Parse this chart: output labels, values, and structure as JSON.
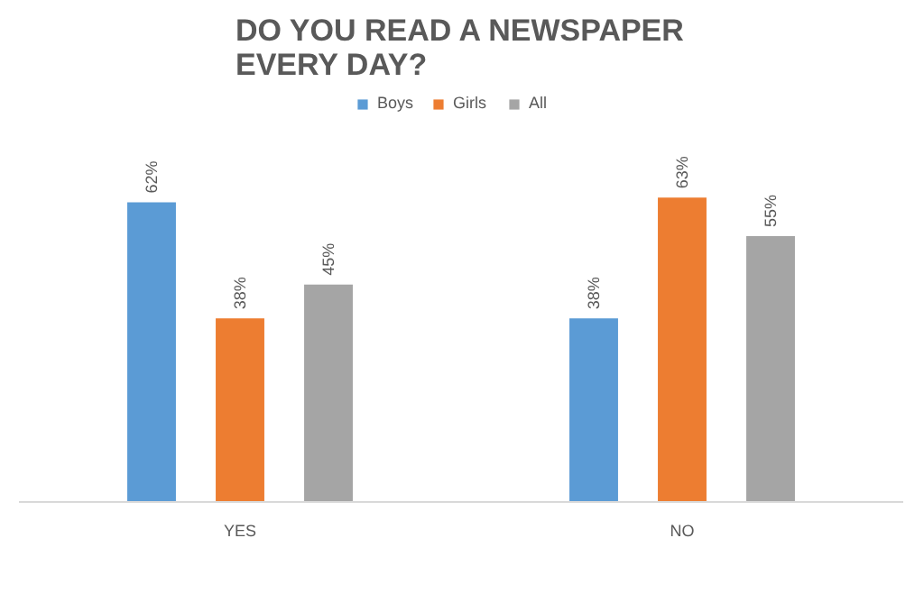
{
  "chart_data": {
    "type": "bar",
    "title": "DO YOU READ A NEWSPAPER EVERY DAY?",
    "categories": [
      "YES",
      "NO"
    ],
    "series": [
      {
        "name": "Boys",
        "color": "#5b9bd5",
        "values": [
          62,
          38
        ],
        "value_labels": [
          "62%",
          "38%"
        ]
      },
      {
        "name": "Girls",
        "color": "#ed7d31",
        "values": [
          38,
          63
        ],
        "value_labels": [
          "38%",
          "63%"
        ]
      },
      {
        "name": "All",
        "color": "#a5a5a5",
        "values": [
          45,
          55
        ],
        "value_labels": [
          "45%",
          "55%"
        ]
      }
    ],
    "tick_labels": "x",
    "legend": "top"
  }
}
